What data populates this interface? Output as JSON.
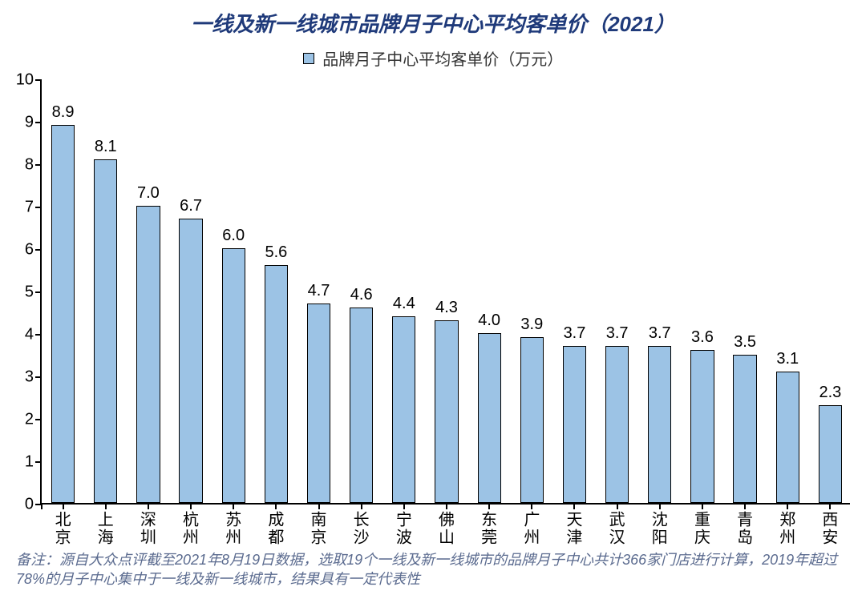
{
  "chart": {
    "type": "bar",
    "title": "一线及新一线城市品牌月子中心平均客单价（2021）",
    "title_color": "#1f3a7a",
    "title_fontsize": 26,
    "title_fontstyle": "italic bold",
    "legend_label": "品牌月子中心平均客单价（万元）",
    "legend_fontsize": 20,
    "legend_text_color": "#333333",
    "legend_swatch_color": "#9cc3e5",
    "legend_swatch_border": "#000000",
    "categories": [
      "北京",
      "上海",
      "深圳",
      "杭州",
      "苏州",
      "成都",
      "南京",
      "长沙",
      "宁波",
      "佛山",
      "东莞",
      "广州",
      "天津",
      "武汉",
      "沈阳",
      "重庆",
      "青岛",
      "郑州",
      "西安"
    ],
    "values": [
      8.9,
      8.1,
      7.0,
      6.7,
      6.0,
      5.6,
      4.7,
      4.6,
      4.4,
      4.3,
      4.0,
      3.9,
      3.7,
      3.7,
      3.7,
      3.6,
      3.5,
      3.1,
      2.3
    ],
    "bar_color": "#9cc3e5",
    "bar_border_color": "#000000",
    "bar_width_ratio": 0.55,
    "ylim": [
      0,
      10
    ],
    "ytick_step": 1,
    "ytick_fontsize": 20,
    "ytick_color": "#000000",
    "xlabel_fontsize": 20,
    "xlabel_color": "#000000",
    "value_label_fontsize": 20,
    "value_label_color": "#000000",
    "axis_color": "#000000",
    "background_color": "#ffffff"
  },
  "footnote": {
    "text": "备注：源自大众点评截至2021年8月19日数据，选取19个一线及新一线城市的品牌月子中心共计366家门店进行计算，2019年超过78%的月子中心集中于一线及新一线城市，结果具有一定代表性",
    "fontsize": 18,
    "color": "#5b6b8f",
    "fontstyle": "italic"
  }
}
